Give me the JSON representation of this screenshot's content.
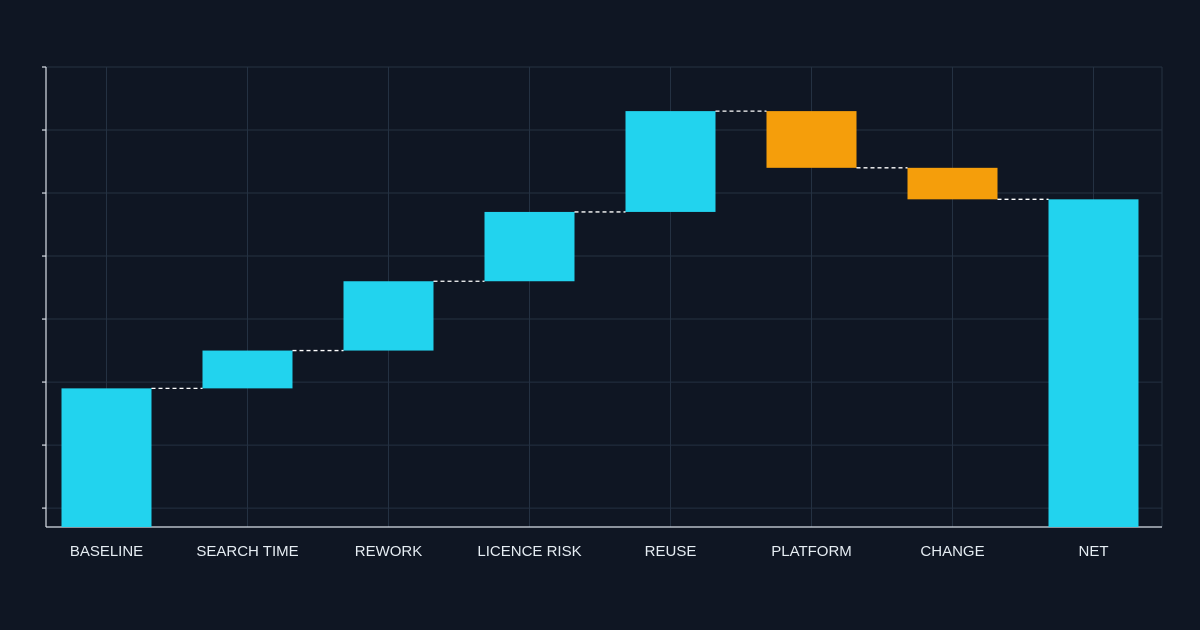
{
  "chart_data": {
    "type": "waterfall",
    "categories": [
      "BASELINE",
      "SEARCH TIME",
      "REWORK",
      "LICENCE RISK",
      "REUSE",
      "PLATFORM",
      "CHANGE",
      "NET"
    ],
    "values": [
      2.2,
      0.6,
      1.1,
      1.1,
      1.6,
      -0.9,
      -0.5,
      5.2
    ],
    "measure": [
      "absolute",
      "relative",
      "relative",
      "relative",
      "relative",
      "relative",
      "relative",
      "total"
    ],
    "increase_color": "#22d3ee",
    "decrease_color": "#f59e0b",
    "total_color": "#22d3ee",
    "ylim": [
      0,
      7.3
    ],
    "yticks": [
      0.3,
      1.3,
      2.3,
      3.3,
      4.3,
      5.3,
      6.3,
      7.3
    ],
    "grid": true
  }
}
